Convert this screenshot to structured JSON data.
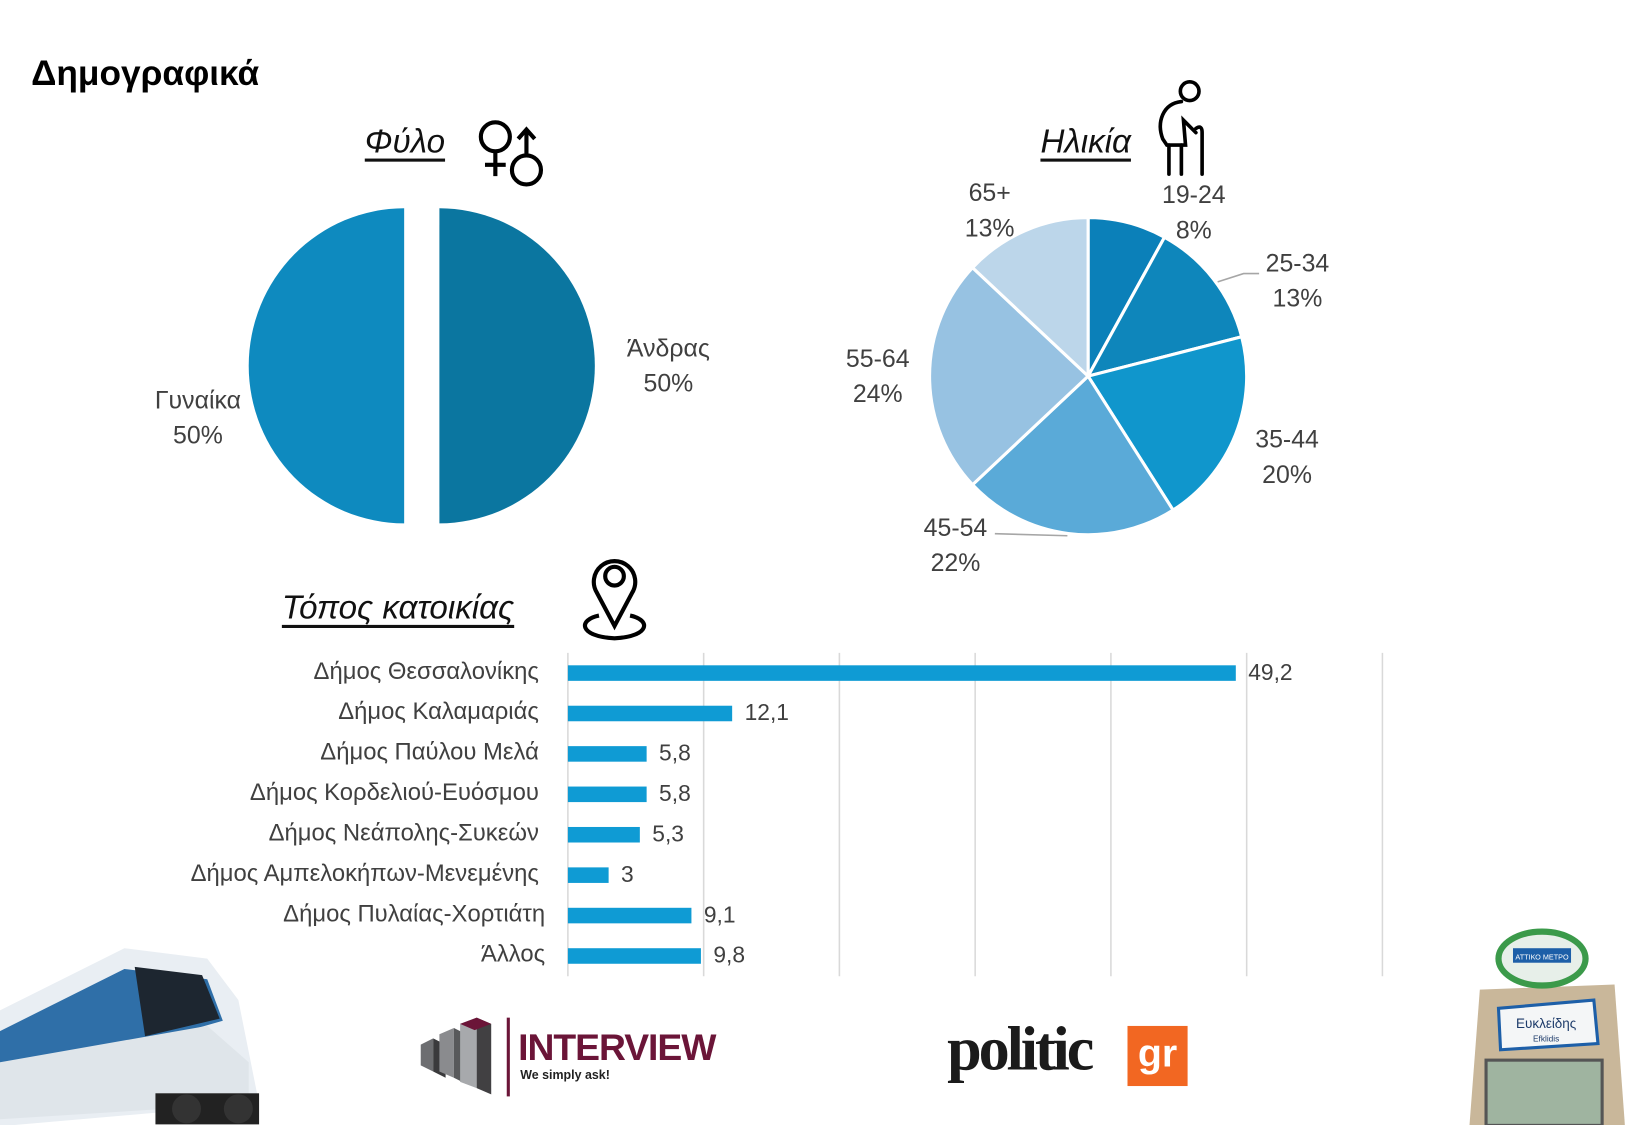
{
  "page_title": "Δημογραφικά",
  "colors": {
    "bar": "#0f9bd4",
    "grid": "#d9d9d9",
    "text": "#404040"
  },
  "chart_data": [
    {
      "type": "pie",
      "title": "Φύλο",
      "icon": "gender-icon",
      "slices": [
        {
          "label": "Άνδρας",
          "value": 50,
          "display": "50%",
          "color": "#0b76a0"
        },
        {
          "label": "Γυναίκα",
          "value": 50,
          "display": "50%",
          "color": "#0e8abf"
        }
      ]
    },
    {
      "type": "pie",
      "title": "Ηλικία",
      "icon": "elderly-person-icon",
      "slices": [
        {
          "label": "19-24",
          "value": 8,
          "display": "8%",
          "color": "#0b80b9"
        },
        {
          "label": "25-34",
          "value": 13,
          "display": "13%",
          "color": "#0e86bb"
        },
        {
          "label": "35-44",
          "value": 20,
          "display": "20%",
          "color": "#1096cc"
        },
        {
          "label": "45-54",
          "value": 22,
          "display": "22%",
          "color": "#5aaad8"
        },
        {
          "label": "55-64",
          "value": 24,
          "display": "24%",
          "color": "#97c2e2"
        },
        {
          "label": "65+",
          "value": 13,
          "display": "13%",
          "color": "#bcd6ea"
        }
      ]
    },
    {
      "type": "bar",
      "orientation": "horizontal",
      "title": "Τόπος κατοικίας",
      "icon": "map-pin-icon",
      "categories": [
        "Δήμος Θεσσαλονίκης",
        "Δήμος Καλαμαριάς",
        "Δήμος Παύλου Μελά",
        "Δήμος Κορδελιού-Ευόσμου",
        "Δήμος Νεάπολης-Συκεών",
        "Δήμος Αμπελοκήπων-Μενεμένης",
        "Δήμος Πυλαίας-Χορτιάτη",
        "Άλλος"
      ],
      "values": [
        49.2,
        12.1,
        5.8,
        5.8,
        5.3,
        3,
        9.1,
        9.8
      ],
      "value_labels": [
        "49,2",
        "12,1",
        "5,8",
        "5,8",
        "5,3",
        "3",
        "9,1",
        "9,8"
      ],
      "xlim": [
        0,
        60
      ],
      "grid": true
    }
  ],
  "logos": {
    "interview_name": "INTERVIEW",
    "interview_tagline": "We simply ask!",
    "politic_name": "politic",
    "politic_suffix": "gr"
  },
  "sign": {
    "line1": "Ευκλείδης",
    "line2": "Efklidis",
    "top": "ΑΤΤΙΚΟ ΜΕΤΡΟ"
  }
}
